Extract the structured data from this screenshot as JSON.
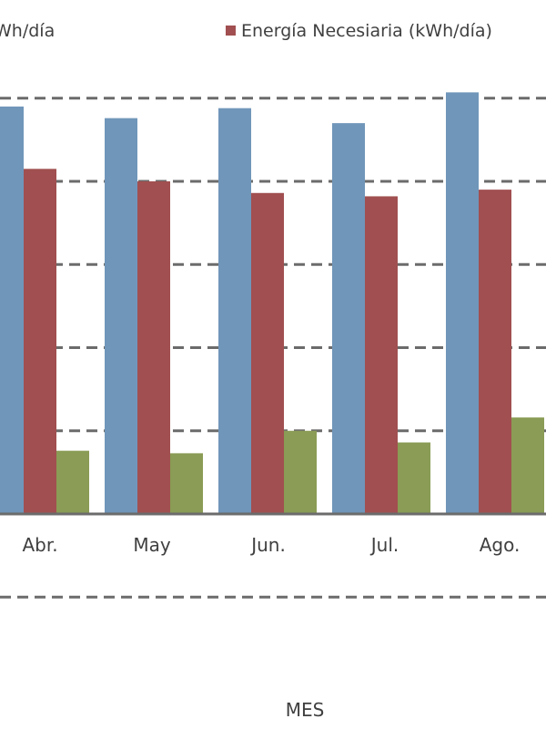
{
  "chart_data": {
    "type": "bar",
    "title": "",
    "xlabel": "MES",
    "ylabel": "",
    "categories": [
      "Abr.",
      "May",
      "Jun.",
      "Jul.",
      "Ago."
    ],
    "series": [
      {
        "name": "",
        "legend_text": "Wh/día",
        "color": "#7096BA",
        "values": [
          4.9,
          4.76,
          4.88,
          4.7,
          5.07
        ]
      },
      {
        "name": "Energía Necesiaria (kWh/día)",
        "legend_text": "Energía Necesiaria (kWh/día)",
        "color": "#A14F50",
        "values": [
          4.15,
          4.0,
          3.86,
          3.82,
          3.9
        ]
      },
      {
        "name": "",
        "legend_text": "",
        "color": "#8A9C55",
        "values": [
          0.76,
          0.73,
          1.0,
          0.86,
          1.16
        ]
      }
    ],
    "ylim": [
      -1,
      5
    ],
    "gridlines": [
      -1,
      1,
      2,
      3,
      4,
      5
    ],
    "grid": true,
    "legend_position": "top"
  }
}
